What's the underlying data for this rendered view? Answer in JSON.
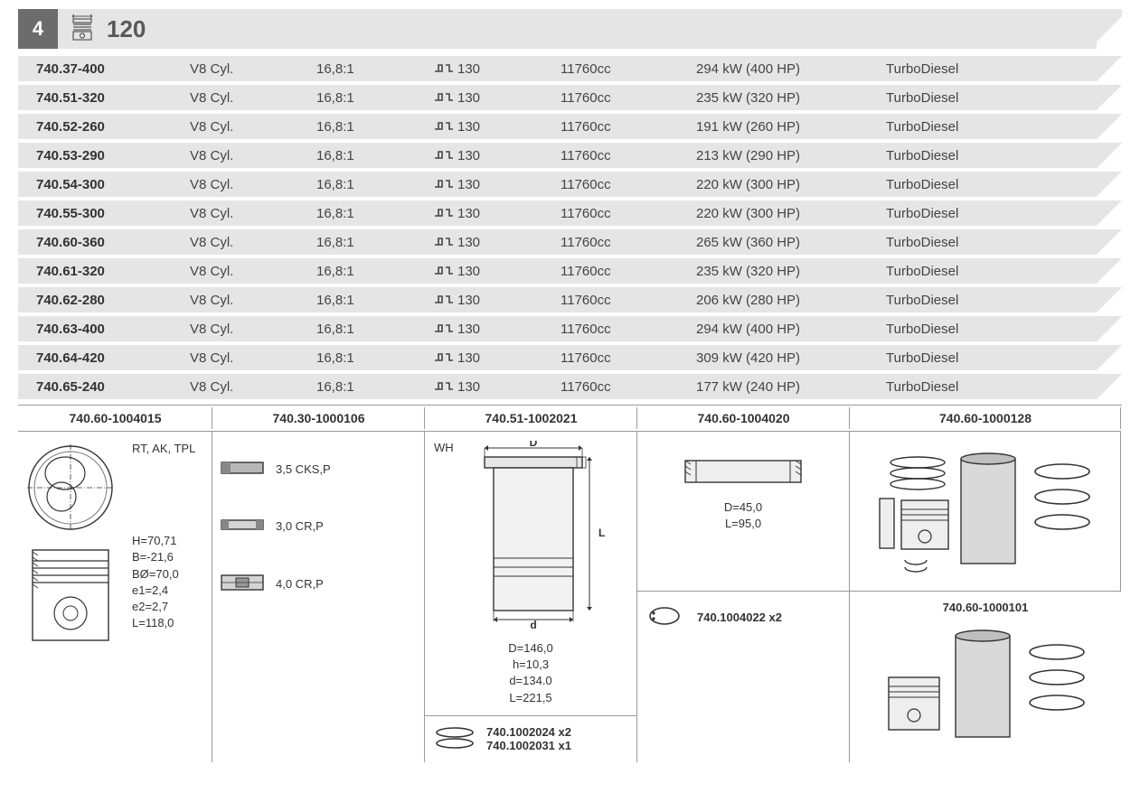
{
  "header": {
    "section_number": "4",
    "bore_size": "120"
  },
  "engine_rows": [
    {
      "model": "740.37-400",
      "cyl": "V8 Cyl.",
      "ratio": "16,8:1",
      "bore": "130",
      "cc": "11760cc",
      "power": "294 kW (400 HP)",
      "fuel": "TurboDiesel"
    },
    {
      "model": "740.51-320",
      "cyl": "V8 Cyl.",
      "ratio": "16,8:1",
      "bore": "130",
      "cc": "11760cc",
      "power": "235 kW (320 HP)",
      "fuel": "TurboDiesel"
    },
    {
      "model": "740.52-260",
      "cyl": "V8 Cyl.",
      "ratio": "16,8:1",
      "bore": "130",
      "cc": "11760cc",
      "power": "191 kW (260 HP)",
      "fuel": "TurboDiesel"
    },
    {
      "model": "740.53-290",
      "cyl": "V8 Cyl.",
      "ratio": "16,8:1",
      "bore": "130",
      "cc": "11760cc",
      "power": "213 kW (290 HP)",
      "fuel": "TurboDiesel"
    },
    {
      "model": "740.54-300",
      "cyl": "V8 Cyl.",
      "ratio": "16,8:1",
      "bore": "130",
      "cc": "11760cc",
      "power": "220 kW (300 HP)",
      "fuel": "TurboDiesel"
    },
    {
      "model": "740.55-300",
      "cyl": "V8 Cyl.",
      "ratio": "16,8:1",
      "bore": "130",
      "cc": "11760cc",
      "power": "220 kW (300 HP)",
      "fuel": "TurboDiesel"
    },
    {
      "model": "740.60-360",
      "cyl": "V8 Cyl.",
      "ratio": "16,8:1",
      "bore": "130",
      "cc": "11760cc",
      "power": "265 kW (360 HP)",
      "fuel": "TurboDiesel"
    },
    {
      "model": "740.61-320",
      "cyl": "V8 Cyl.",
      "ratio": "16,8:1",
      "bore": "130",
      "cc": "11760cc",
      "power": "235 kW (320 HP)",
      "fuel": "TurboDiesel"
    },
    {
      "model": "740.62-280",
      "cyl": "V8 Cyl.",
      "ratio": "16,8:1",
      "bore": "130",
      "cc": "11760cc",
      "power": "206 kW (280 HP)",
      "fuel": "TurboDiesel"
    },
    {
      "model": "740.63-400",
      "cyl": "V8 Cyl.",
      "ratio": "16,8:1",
      "bore": "130",
      "cc": "11760cc",
      "power": "294 kW (400 HP)",
      "fuel": "TurboDiesel"
    },
    {
      "model": "740.64-420",
      "cyl": "V8 Cyl.",
      "ratio": "16,8:1",
      "bore": "130",
      "cc": "11760cc",
      "power": "309 kW (420 HP)",
      "fuel": "TurboDiesel"
    },
    {
      "model": "740.65-240",
      "cyl": "V8 Cyl.",
      "ratio": "16,8:1",
      "bore": "130",
      "cc": "11760cc",
      "power": "177 kW (240 HP)",
      "fuel": "TurboDiesel"
    }
  ],
  "parts": {
    "piston": {
      "part_no": "740.60-1004015",
      "tags": "RT, AK, TPL",
      "specs": [
        "H=70,71",
        "B=-21,6",
        "BØ=70,0",
        "e1=2,4",
        "e2=2,7",
        "L=118,0"
      ]
    },
    "rings": {
      "part_no": "740.30-1000106",
      "items": [
        {
          "label": "3,5 CKS,P"
        },
        {
          "label": "3,0 CR,P"
        },
        {
          "label": "4,0 CR,P"
        }
      ]
    },
    "liner": {
      "part_no": "740.51-1002021",
      "code": "WH",
      "dim_labels": {
        "D": "D",
        "L": "L",
        "d": "d"
      },
      "specs": [
        "D=146,0",
        "h=10,3",
        "d=134.0",
        "L=221,5"
      ],
      "sub_part_line1": "740.1002024 x2",
      "sub_part_line2": "740.1002031 x1"
    },
    "pin": {
      "part_no": "740.60-1004020",
      "specs": [
        "D=45,0",
        "L=95,0"
      ],
      "sub_part": "740.1004022 x2"
    },
    "kit1": {
      "part_no": "740.60-1000128"
    },
    "kit2": {
      "part_no": "740.60-1000101"
    }
  },
  "colors": {
    "band_bg": "#e5e5e5",
    "section_bg": "#6c6c6c",
    "text": "#333333",
    "rule": "#999999"
  }
}
